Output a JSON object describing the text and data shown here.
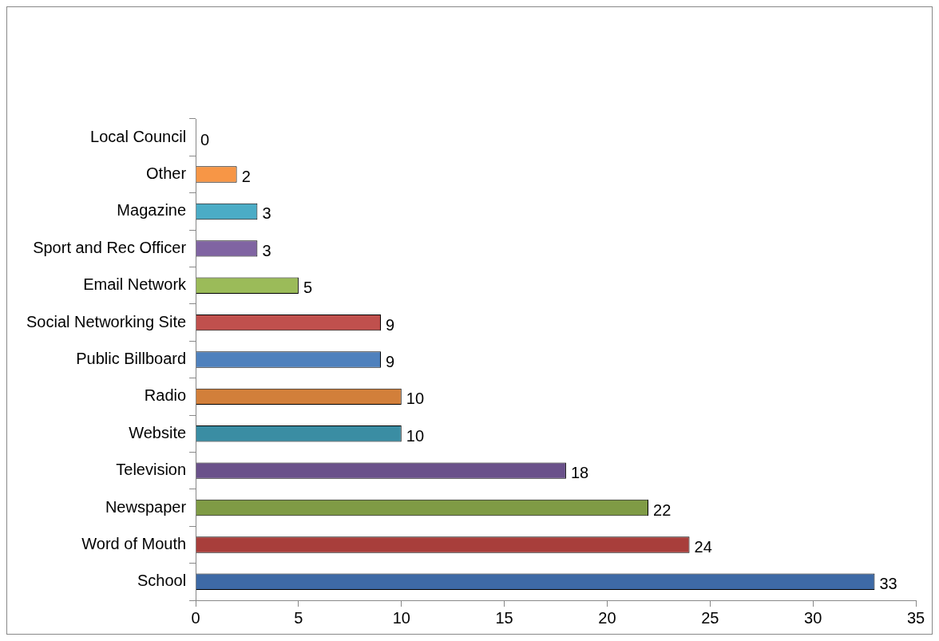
{
  "chart_data": {
    "type": "bar",
    "orientation": "horizontal",
    "categories": [
      "Local Council",
      "Other",
      "Magazine",
      "Sport and Rec Officer",
      "Email Network",
      "Social Networking Site",
      "Public Billboard",
      "Radio",
      "Website",
      "Television",
      "Newspaper",
      "Word of Mouth",
      "School"
    ],
    "values": [
      0,
      2,
      3,
      3,
      5,
      9,
      9,
      10,
      10,
      18,
      22,
      24,
      33
    ],
    "colors": [
      "#4f81bd",
      "#f79646",
      "#4bacc6",
      "#8064a2",
      "#9bbb59",
      "#c0504d",
      "#4f81bd",
      "#d27f3a",
      "#3a8da3",
      "#6a518a",
      "#7f9b45",
      "#a83e3b",
      "#3e6aa6"
    ],
    "xlim": [
      0,
      35
    ],
    "xticks": [
      0,
      5,
      10,
      15,
      20,
      25,
      30,
      35
    ],
    "grid": false,
    "legend": false,
    "data_labels": true
  }
}
